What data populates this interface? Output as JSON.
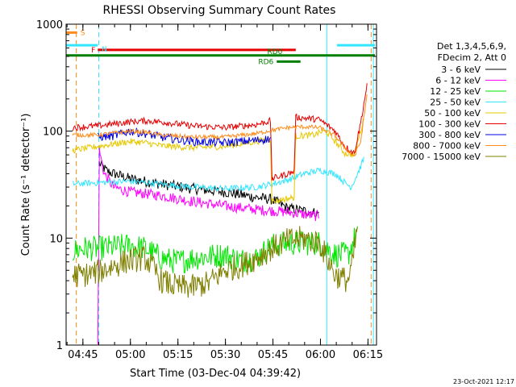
{
  "chart_data": {
    "type": "line",
    "title": "RHESSI Observing Summary Count Rates",
    "xlabel": "Start Time (03-Dec-04 04:39:42)",
    "ylabel": "Count Rate (s⁻¹ detector⁻¹)",
    "y_scale": "log",
    "ylim": [
      1,
      1000
    ],
    "xlim_minutes": [
      0,
      98
    ],
    "x_ticks": [
      {
        "label": "04:45",
        "minutes": 5.3
      },
      {
        "label": "05:00",
        "minutes": 20.3
      },
      {
        "label": "05:15",
        "minutes": 35.3
      },
      {
        "label": "05:30",
        "minutes": 50.3
      },
      {
        "label": "05:45",
        "minutes": 65.3
      },
      {
        "label": "06:00",
        "minutes": 80.3
      },
      {
        "label": "06:15",
        "minutes": 95.3
      }
    ],
    "y_ticks": [
      {
        "label": "1",
        "value": 1
      },
      {
        "label": "10",
        "value": 10
      },
      {
        "label": "100",
        "value": 100
      },
      {
        "label": "1000",
        "value": 1000
      }
    ],
    "legend_header": [
      "Det 1,3,4,5,6,9,",
      "FDecim 2, Att 0"
    ],
    "legend_position": "right",
    "timestamp": "23-Oct-2021 12:17",
    "flags": [
      {
        "label": "S",
        "color": "#ff8c1a",
        "y": 835,
        "x_start": 0,
        "x_end": 3.5
      },
      {
        "label": "N",
        "color": "#33e6ff",
        "y": 635,
        "x_start": 0,
        "x_end": 10
      },
      {
        "label": "N",
        "color": "#33e6ff",
        "y": 635,
        "x_start": 85.5,
        "x_end": 97.5
      },
      {
        "label": "F",
        "color": "#e60000",
        "y": 575,
        "x_start": 10,
        "x_end": 72.5
      },
      {
        "label": "RD0",
        "color": "#007f00",
        "y": 510,
        "x_start": 0,
        "x_end": 97.5
      },
      {
        "label": "RD6",
        "color": "#007f00",
        "y": 447,
        "x_start": 66.5,
        "x_end": 74
      }
    ],
    "vlines": [
      {
        "minutes": 3.2,
        "color": "#ff8c1a",
        "style": "dashed"
      },
      {
        "minutes": 10.3,
        "color": "#33e6ff",
        "style": "dashed"
      },
      {
        "minutes": 82.3,
        "color": "#33e6ff",
        "style": "solid"
      },
      {
        "minutes": 96.3,
        "color": "#ff8c1a",
        "style": "dashed"
      },
      {
        "minutes": 97.0,
        "color": "#33e6ff",
        "style": "solid"
      }
    ],
    "series": [
      {
        "name": "3 - 6 keV",
        "color": "#000000",
        "noise": 0.05,
        "points": [
          [
            10.5,
            50
          ],
          [
            13,
            42
          ],
          [
            20,
            36
          ],
          [
            30,
            32
          ],
          [
            40,
            29
          ],
          [
            50,
            27
          ],
          [
            60,
            24
          ],
          [
            65,
            23
          ],
          [
            70,
            19
          ],
          [
            75,
            18
          ],
          [
            79.8,
            17
          ]
        ]
      },
      {
        "name": "6 - 12 keV",
        "color": "#ff00ff",
        "noise": 0.05,
        "points": [
          [
            10,
            1
          ],
          [
            10.5,
            66
          ],
          [
            12,
            40
          ],
          [
            15,
            30
          ],
          [
            20,
            27
          ],
          [
            30,
            25
          ],
          [
            40,
            22
          ],
          [
            50,
            20
          ],
          [
            60,
            18.5
          ],
          [
            70,
            17.5
          ],
          [
            79.8,
            16
          ]
        ]
      },
      {
        "name": "12 - 25 keV",
        "color": "#00e600",
        "noise": 0.12,
        "points": [
          [
            2,
            7.5
          ],
          [
            5,
            8
          ],
          [
            10,
            8
          ],
          [
            20,
            8.5
          ],
          [
            25,
            8
          ],
          [
            30,
            6.5
          ],
          [
            35,
            6
          ],
          [
            40,
            6.5
          ],
          [
            50,
            7
          ],
          [
            55,
            6.2
          ],
          [
            60,
            6.5
          ],
          [
            65,
            8.5
          ],
          [
            70,
            9
          ],
          [
            75,
            9
          ],
          [
            80,
            9
          ],
          [
            85,
            7
          ],
          [
            89,
            7
          ],
          [
            90.5,
            9
          ],
          [
            92,
            11.5
          ]
        ]
      },
      {
        "name": "25 - 50 keV",
        "color": "#33e6ff",
        "noise": 0.03,
        "points": [
          [
            2,
            32
          ],
          [
            10,
            33
          ],
          [
            20,
            34
          ],
          [
            25,
            33
          ],
          [
            30,
            32
          ],
          [
            40,
            30
          ],
          [
            50,
            29
          ],
          [
            60,
            30
          ],
          [
            65,
            32
          ],
          [
            70,
            35
          ],
          [
            75,
            40
          ],
          [
            80,
            43
          ],
          [
            85,
            40
          ],
          [
            88,
            33
          ],
          [
            90,
            30
          ],
          [
            92,
            40
          ],
          [
            94,
            55
          ]
        ]
      },
      {
        "name": "50 - 100 keV",
        "color": "#e6c800",
        "noise": 0.03,
        "points": [
          [
            2,
            66
          ],
          [
            10,
            72
          ],
          [
            20,
            80
          ],
          [
            25,
            78
          ],
          [
            30,
            73
          ],
          [
            40,
            70
          ],
          [
            50,
            72
          ],
          [
            60,
            80
          ],
          [
            64.5,
            84
          ],
          [
            65,
            22
          ],
          [
            72,
            24
          ],
          [
            72.5,
            90
          ],
          [
            78,
            92
          ],
          [
            80,
            97
          ],
          [
            82,
            100
          ],
          [
            85,
            80
          ],
          [
            88,
            62
          ],
          [
            91,
            60
          ],
          [
            94,
            130
          ]
        ]
      },
      {
        "name": "100 - 300 keV",
        "color": "#e60000",
        "noise": 0.03,
        "points": [
          [
            2,
            108
          ],
          [
            10,
            112
          ],
          [
            20,
            122
          ],
          [
            25,
            125
          ],
          [
            30,
            122
          ],
          [
            40,
            112
          ],
          [
            50,
            108
          ],
          [
            60,
            115
          ],
          [
            64.5,
            125
          ],
          [
            65,
            36
          ],
          [
            70,
            40
          ],
          [
            72,
            42
          ],
          [
            72.5,
            135
          ],
          [
            78,
            130
          ],
          [
            80,
            128
          ],
          [
            85,
            100
          ],
          [
            88,
            72
          ],
          [
            91,
            62
          ],
          [
            93,
            120
          ],
          [
            95,
            270
          ]
        ]
      },
      {
        "name": "300 - 800 keV",
        "color": "#0000e6",
        "noise": 0.04,
        "points": [
          [
            10,
            88
          ],
          [
            15,
            90
          ],
          [
            20,
            100
          ],
          [
            25,
            95
          ],
          [
            30,
            88
          ],
          [
            40,
            80
          ],
          [
            50,
            78
          ],
          [
            60,
            82
          ],
          [
            64.5,
            85
          ]
        ]
      },
      {
        "name": "800 - 7000 keV",
        "color": "#ff8c1a",
        "noise": 0.02,
        "points": [
          [
            2,
            92
          ],
          [
            10,
            92
          ],
          [
            20,
            100
          ],
          [
            25,
            98
          ],
          [
            30,
            92
          ],
          [
            40,
            88
          ],
          [
            50,
            88
          ],
          [
            60,
            95
          ],
          [
            65,
            102
          ],
          [
            70,
            108
          ],
          [
            75,
            110
          ],
          [
            80,
            108
          ],
          [
            85,
            90
          ],
          [
            88,
            70
          ],
          [
            91,
            58
          ],
          [
            93,
            80
          ],
          [
            95,
            220
          ]
        ]
      },
      {
        "name": "7000 - 15000 keV",
        "color": "#7f7f00",
        "noise": 0.12,
        "points": [
          [
            2,
            4.5
          ],
          [
            5,
            4.5
          ],
          [
            10,
            4.8
          ],
          [
            15,
            5.5
          ],
          [
            20,
            6.2
          ],
          [
            25,
            6.5
          ],
          [
            28,
            5
          ],
          [
            30,
            4
          ],
          [
            35,
            3.5
          ],
          [
            40,
            3.5
          ],
          [
            45,
            3.8
          ],
          [
            50,
            5
          ],
          [
            55,
            5.5
          ],
          [
            60,
            6.5
          ],
          [
            65,
            8
          ],
          [
            70,
            9.5
          ],
          [
            75,
            10
          ],
          [
            80,
            9
          ],
          [
            85,
            4.5
          ],
          [
            89,
            4
          ],
          [
            90.5,
            6
          ],
          [
            92,
            13
          ]
        ]
      }
    ]
  }
}
